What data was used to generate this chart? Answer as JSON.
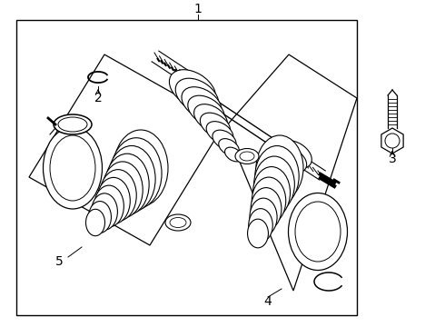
{
  "background_color": "#ffffff",
  "line_color": "#000000",
  "label_color": "#000000",
  "labels": [
    "1",
    "2",
    "3",
    "4",
    "5"
  ]
}
